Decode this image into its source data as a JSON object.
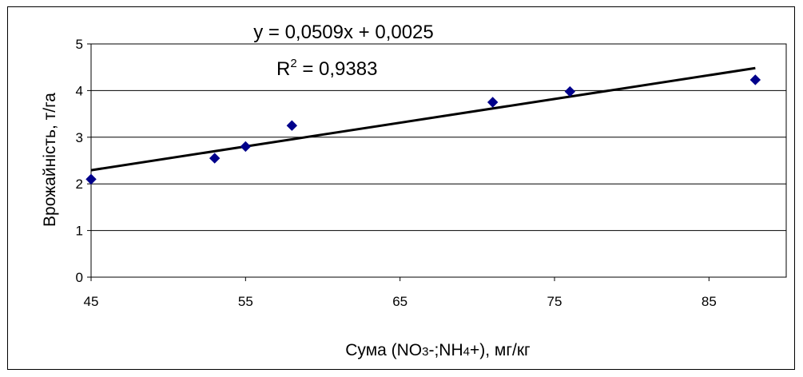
{
  "chart_data": {
    "type": "scatter",
    "xlabel_main": "Сума (NO",
    "xlabel_sub1": "3",
    "xlabel_mid": "-;NH",
    "xlabel_sub2": "4",
    "xlabel_end": "+), мг/кг",
    "ylabel": "Врожайність, т/га",
    "xlim": [
      45,
      90
    ],
    "ylim": [
      0,
      5
    ],
    "x_ticks": [
      45,
      55,
      65,
      75,
      85
    ],
    "y_ticks": [
      0,
      1,
      2,
      3,
      4,
      5
    ],
    "grid": "horizontal",
    "series": [
      {
        "x": [
          45,
          53,
          55,
          58,
          71,
          76,
          88
        ],
        "y": [
          2.1,
          2.55,
          2.8,
          3.25,
          3.75,
          3.98,
          4.23
        ],
        "color": "#00008B",
        "marker": "diamond"
      }
    ],
    "trendline": {
      "type": "linear",
      "slope": 0.0509,
      "intercept": 0.0025,
      "x_range": [
        45,
        88
      ],
      "color": "#000000",
      "equation": "y = 0,0509x + 0,0025",
      "r2_prefix": "R",
      "r2_sup": "2",
      "r2_value": " = 0,9383"
    }
  }
}
